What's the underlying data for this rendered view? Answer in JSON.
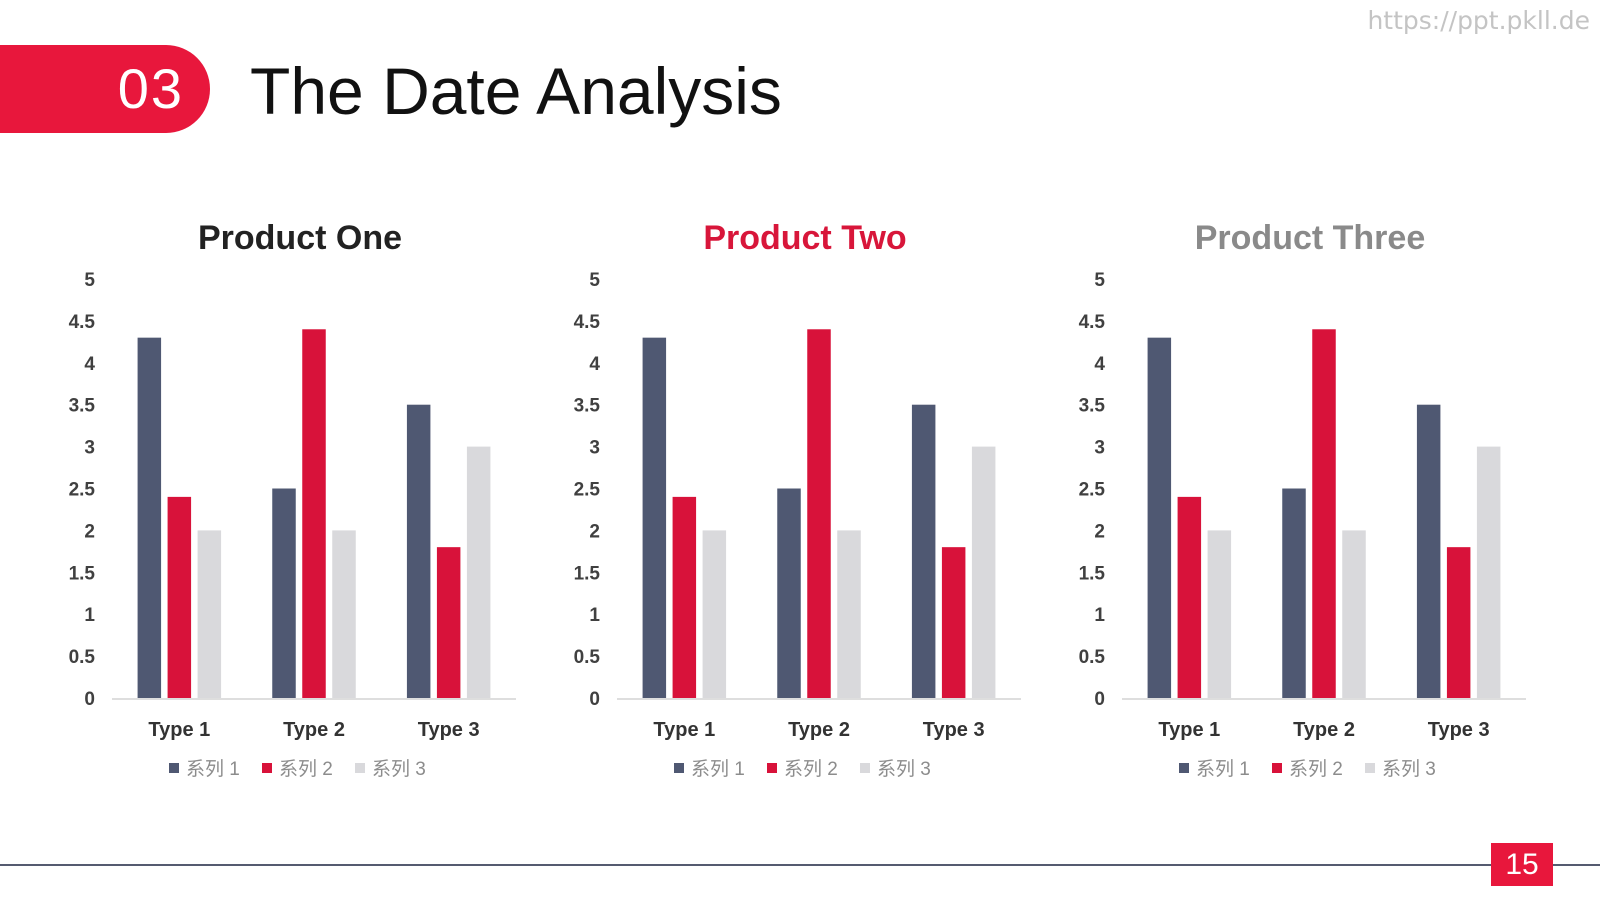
{
  "watermark": "https://ppt.pkll.de",
  "header": {
    "badge_number": "03",
    "title": "The Date Analysis"
  },
  "footer": {
    "page_number": "15"
  },
  "colors": {
    "accent": "#e8173c",
    "footer_line": "#555b70",
    "axis_line": "#d4d4d4",
    "tick_text": "#404040",
    "category_text": "#333333",
    "legend_text": "#8c8c8c"
  },
  "chart_data": [
    {
      "type": "bar",
      "title": "Product One",
      "title_color": "#222222",
      "categories": [
        "Type 1",
        "Type 2",
        "Type 3"
      ],
      "series": [
        {
          "name": "系列 1",
          "color": "#4f5872",
          "values": [
            4.3,
            2.5,
            3.5
          ]
        },
        {
          "name": "系列 2",
          "color": "#d8123a",
          "values": [
            2.4,
            4.4,
            1.8
          ]
        },
        {
          "name": "系列 3",
          "color": "#d9d9dc",
          "values": [
            2,
            2,
            3
          ]
        }
      ],
      "ylim": [
        0,
        5
      ],
      "ytick_labels": [
        "0",
        "0.5",
        "1",
        "1.5",
        "2",
        "2.5",
        "3",
        "3.5",
        "4",
        "4.5",
        "5"
      ],
      "grid": false,
      "legend": "bottom"
    },
    {
      "type": "bar",
      "title": "Product Two",
      "title_color": "#d8163a",
      "categories": [
        "Type 1",
        "Type 2",
        "Type 3"
      ],
      "series": [
        {
          "name": "系列 1",
          "color": "#4f5872",
          "values": [
            4.3,
            2.5,
            3.5
          ]
        },
        {
          "name": "系列 2",
          "color": "#d8123a",
          "values": [
            2.4,
            4.4,
            1.8
          ]
        },
        {
          "name": "系列 3",
          "color": "#d9d9dc",
          "values": [
            2,
            2,
            3
          ]
        }
      ],
      "ylim": [
        0,
        5
      ],
      "ytick_labels": [
        "0",
        "0.5",
        "1",
        "1.5",
        "2",
        "2.5",
        "3",
        "3.5",
        "4",
        "4.5",
        "5"
      ],
      "grid": false,
      "legend": "bottom"
    },
    {
      "type": "bar",
      "title": "Product Three",
      "title_color": "#8a8a8a",
      "categories": [
        "Type 1",
        "Type 2",
        "Type 3"
      ],
      "series": [
        {
          "name": "系列 1",
          "color": "#4f5872",
          "values": [
            4.3,
            2.5,
            3.5
          ]
        },
        {
          "name": "系列 2",
          "color": "#d8123a",
          "values": [
            2.4,
            4.4,
            1.8
          ]
        },
        {
          "name": "系列 3",
          "color": "#d9d9dc",
          "values": [
            2,
            2,
            3
          ]
        }
      ],
      "ylim": [
        0,
        5
      ],
      "ytick_labels": [
        "0",
        "0.5",
        "1",
        "1.5",
        "2",
        "2.5",
        "3",
        "3.5",
        "4",
        "4.5",
        "5"
      ],
      "grid": false,
      "legend": "bottom"
    }
  ]
}
